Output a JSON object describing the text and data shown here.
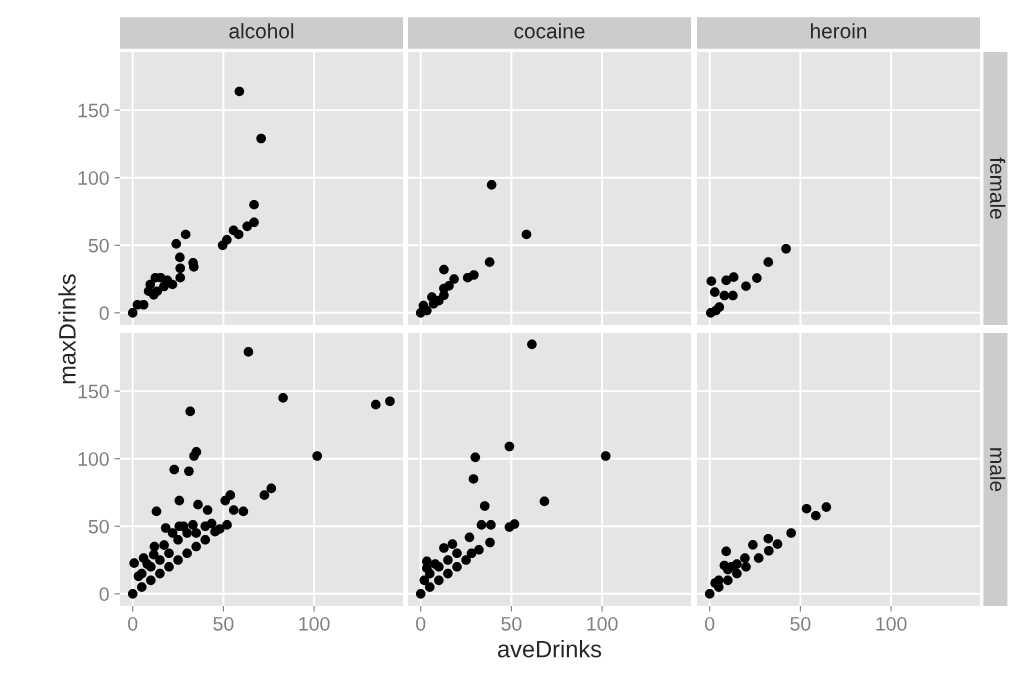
{
  "chart_data": [
    {
      "type": "scatter",
      "title": "alcohol",
      "tick_labels": "y",
      "ylabel": "maxDrinks",
      "xlim": [
        -7,
        149
      ],
      "ylim": [
        -9,
        193
      ],
      "xticks": [
        0,
        50,
        100
      ],
      "yticks": [
        0,
        50,
        100,
        150
      ],
      "grid": true,
      "marker": "circle",
      "series": [
        {
          "color": "#000000",
          "x": [
            58.8,
            70.8,
            66.9,
            66.9,
            63.1,
            58.4,
            55.6,
            51.9,
            49.6,
            29.2,
            24,
            26,
            33.3,
            33.7,
            26.2,
            26.2,
            21.9,
            19.1,
            15.4,
            12.5,
            9.7,
            13.5,
            8.8,
            6,
            2.6,
            0,
            17.2,
            11.6
          ],
          "values": [
            163.8,
            129,
            80,
            67,
            64,
            58,
            61,
            54,
            50,
            58,
            51,
            41,
            37,
            34,
            33,
            26,
            21,
            24,
            26,
            26,
            21,
            16,
            16,
            6,
            6,
            0,
            19.5,
            13.3
          ]
        }
      ]
    },
    {
      "type": "scatter",
      "title": "cocaine",
      "tick_labels": false,
      "xlim": [
        -7,
        149
      ],
      "ylim": [
        -9,
        193
      ],
      "xticks": [
        0,
        50,
        100
      ],
      "yticks": [
        0,
        50,
        100,
        150
      ],
      "grid": true,
      "marker": "circle",
      "series": [
        {
          "color": "#000000",
          "x": [
            39.1,
            58.3,
            38,
            29.3,
            25.9,
            12.8,
            18.4,
            15.6,
            12.8,
            12.8,
            6.2,
            7.1,
            1.5,
            0,
            3.4,
            10
          ],
          "values": [
            94.7,
            58,
            37.5,
            28,
            26,
            32,
            25,
            20,
            18,
            13,
            11.6,
            6.7,
            5.4,
            0,
            1.7,
            9
          ]
        }
      ]
    },
    {
      "type": "scatter",
      "title": "heroin",
      "y2label": "female",
      "tick_labels": false,
      "xlim": [
        -7,
        149
      ],
      "ylim": [
        -9,
        193
      ],
      "xticks": [
        0,
        50,
        100
      ],
      "yticks": [
        0,
        50,
        100,
        150
      ],
      "grid": true,
      "marker": "circle",
      "series": [
        {
          "color": "#000000",
          "x": [
            42.1,
            32.3,
            26,
            20,
            13.2,
            9.1,
            0.9,
            2.8,
            8.1,
            12.8,
            5.3,
            0.6,
            3.4
          ],
          "values": [
            47.4,
            37.5,
            25.7,
            19.7,
            26.4,
            24,
            23.4,
            15.3,
            12.8,
            12.8,
            4.2,
            0,
            1.7
          ]
        }
      ]
    },
    {
      "type": "scatter",
      "xlim": [
        -7,
        149
      ],
      "ylim": [
        -9,
        193
      ],
      "xticks": [
        0,
        50,
        100
      ],
      "yticks": [
        0,
        50,
        100,
        150
      ],
      "grid": true,
      "marker": "circle",
      "series": [
        {
          "color": "#000000",
          "x": [
            63.8,
            82.9,
            134,
            141.8,
            101.7,
            31.7,
            35.1,
            33.8,
            22.9,
            31,
            76.4,
            72.6,
            53.8,
            51,
            25.7,
            36,
            41.3,
            55.7,
            61,
            13.1,
            52,
            43.5,
            33.2,
            25.7,
            18.2,
            45.4,
            0.8,
            6,
            11.6,
            17.3,
            3.2,
            0,
            5,
            10,
            15,
            20,
            25,
            30,
            35,
            40,
            48,
            10,
            20,
            25,
            30,
            15,
            5,
            8,
            35,
            40,
            12,
            22,
            28
          ],
          "values": [
            179,
            145,
            140,
            142.5,
            102,
            135,
            105,
            102,
            92,
            90.7,
            78,
            73,
            73,
            69,
            69,
            66,
            62,
            62,
            61,
            61,
            51,
            52,
            51,
            50,
            48.7,
            46,
            22.7,
            26.4,
            29,
            36,
            13,
            0,
            5,
            10,
            15,
            20,
            25,
            30,
            35,
            40,
            48,
            20,
            30,
            40,
            45,
            25,
            15,
            22,
            45,
            50,
            35,
            45,
            50
          ]
        }
      ]
    },
    {
      "type": "scatter",
      "xlabel": "aveDrinks",
      "tick_labels": "x",
      "xlim": [
        -7,
        149
      ],
      "ylim": [
        -9,
        193
      ],
      "xticks": [
        0,
        50,
        100
      ],
      "yticks": [
        0,
        50,
        100,
        150
      ],
      "grid": true,
      "marker": "circle",
      "series": [
        {
          "color": "#000000",
          "x": [
            61.3,
            48.9,
            102,
            30.1,
            29.1,
            68.2,
            35.3,
            33.5,
            38.7,
            48.9,
            51.7,
            38.2,
            32.1,
            26.9,
            17.5,
            12.8,
            3.4,
            3.4,
            0,
            5,
            10,
            15,
            20,
            25,
            28,
            5,
            10,
            15,
            20,
            8,
            2
          ],
          "values": [
            184.6,
            109,
            102,
            101,
            85,
            68.4,
            65,
            51,
            51,
            49.4,
            51.6,
            38,
            32.6,
            41.8,
            36.8,
            33.9,
            24,
            19,
            0,
            5,
            10,
            15,
            20,
            25,
            30,
            15,
            20,
            25,
            30,
            22,
            10
          ]
        }
      ]
    },
    {
      "type": "scatter",
      "y2label": "male",
      "tick_labels": "x",
      "xlim": [
        -7,
        149
      ],
      "ylim": [
        -9,
        193
      ],
      "xticks": [
        0,
        50,
        100
      ],
      "yticks": [
        0,
        50,
        100,
        150
      ],
      "grid": true,
      "marker": "circle",
      "series": [
        {
          "color": "#000000",
          "x": [
            64.3,
            53.4,
            58.5,
            44.9,
            32.3,
            37.4,
            32.6,
            23.8,
            9.1,
            27,
            8.1,
            19.4,
            0,
            5,
            10,
            15,
            20,
            5,
            10,
            15,
            3,
            12
          ],
          "values": [
            64.2,
            63,
            57.8,
            45,
            40.8,
            36.8,
            31.9,
            36.3,
            31.4,
            26.4,
            21,
            26.4,
            0,
            5,
            10,
            15,
            20,
            10,
            18,
            22,
            8,
            20
          ]
        }
      ]
    }
  ]
}
